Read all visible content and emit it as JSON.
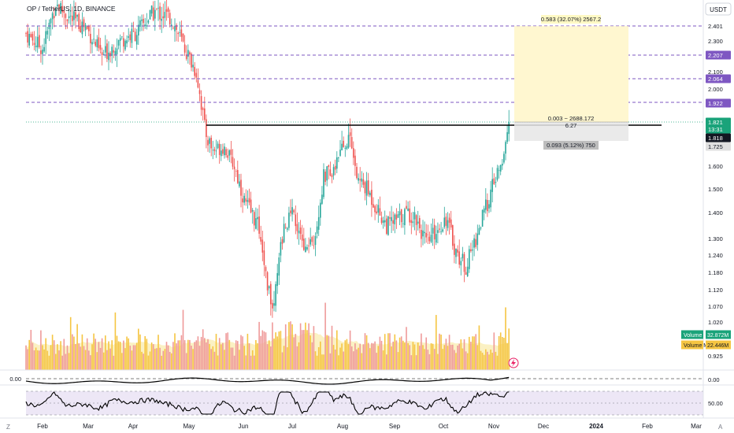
{
  "header": {
    "symbol_line": "OP / TetherUS, 1D, BINANCE",
    "currency": "USDT"
  },
  "colors": {
    "up": "#26a69a",
    "down": "#ef5350",
    "volume_up": "#f5c542",
    "volume_down": "#ef9a9a",
    "volume_ma": "#f7e07a",
    "level_line": "#7e57c2",
    "price_tag": "#1aa37a",
    "rsi_band": "#ede7f6",
    "target_zone": "#fff7d0",
    "stop_zone": "#e6e6e6"
  },
  "price_axis": {
    "ticks": [
      "2.401",
      "2.300",
      "2.207",
      "2.100",
      "2.064",
      "2.000",
      "1.922",
      "1.821",
      "1.725",
      "1.600",
      "1.500",
      "1.400",
      "1.300",
      "1.240",
      "1.180",
      "1.120",
      "1.070",
      "1.020",
      "0.925"
    ],
    "labels": [
      {
        "text": "2.401",
        "style": "plain"
      },
      {
        "text": "2.300",
        "style": "plain"
      },
      {
        "text": "2.207",
        "style": "level"
      },
      {
        "text": "2.100",
        "style": "plain"
      },
      {
        "text": "2.064",
        "style": "level"
      },
      {
        "text": "2.000",
        "style": "plain"
      },
      {
        "text": "1.922",
        "style": "level"
      },
      {
        "text": "1.821",
        "style": "price"
      },
      {
        "text": "13:31",
        "style": "price"
      },
      {
        "text": "1.818",
        "style": "dark"
      },
      {
        "text": "1.725",
        "style": "grey"
      },
      {
        "text": "1.600",
        "style": "plain"
      },
      {
        "text": "1.500",
        "style": "plain"
      },
      {
        "text": "1.400",
        "style": "plain"
      },
      {
        "text": "1.300",
        "style": "plain"
      },
      {
        "text": "1.240",
        "style": "plain"
      },
      {
        "text": "1.180",
        "style": "plain"
      },
      {
        "text": "1.120",
        "style": "plain"
      },
      {
        "text": "1.070",
        "style": "plain"
      },
      {
        "text": "1.020",
        "style": "plain"
      },
      {
        "text": "0.925",
        "style": "plain"
      }
    ]
  },
  "time_axis": [
    "Feb",
    "Mar",
    "Apr",
    "May",
    "Jun",
    "Jul",
    "Aug",
    "Sep",
    "Oct",
    "Nov",
    "Dec",
    "2024",
    "Feb",
    "Mar"
  ],
  "levels": [
    2.401,
    2.207,
    2.064,
    1.922
  ],
  "resistance": 1.818,
  "position": {
    "target_label": "0.583 (32.07%) 2567.2",
    "entry_label": "0.003 ~ 2688.172",
    "ratio_label": "6.27",
    "stop_label": "0.093 (5.12%) 750"
  },
  "volume_legend": [
    {
      "name": "Volume",
      "value": "32.872M"
    },
    {
      "name": "Volume MA",
      "value": "22.446M"
    }
  ],
  "oscillator": {
    "zero_left": "0.00",
    "zero_right": "0.00",
    "rsi_right": "50.00"
  },
  "footer": {
    "left": "Z",
    "right": "A"
  },
  "chart_data": {
    "type": "candlestick",
    "title": "OP / TetherUS, 1D, BINANCE",
    "x_start": "2023-01-24",
    "x_end": "2023-11-06",
    "ylim": [
      0.92,
      2.46
    ],
    "last_price": 1.821,
    "close_path": [
      [
        0,
        2.35
      ],
      [
        10,
        2.25
      ],
      [
        18,
        2.55
      ],
      [
        27,
        2.45
      ],
      [
        36,
        2.4
      ],
      [
        46,
        2.2
      ],
      [
        56,
        2.3
      ],
      [
        66,
        2.35
      ],
      [
        78,
        2.5
      ],
      [
        88,
        2.45
      ],
      [
        96,
        2.25
      ],
      [
        103,
        2.1
      ],
      [
        108,
        1.8
      ],
      [
        113,
        1.7
      ],
      [
        120,
        1.72
      ],
      [
        126,
        1.6
      ],
      [
        132,
        1.45
      ],
      [
        138,
        1.38
      ],
      [
        142,
        1.32
      ],
      [
        146,
        1.12
      ],
      [
        150,
        1.08
      ],
      [
        156,
        1.35
      ],
      [
        162,
        1.4
      ],
      [
        168,
        1.25
      ],
      [
        174,
        1.28
      ],
      [
        180,
        1.55
      ],
      [
        186,
        1.6
      ],
      [
        192,
        1.72
      ],
      [
        196,
        1.78
      ],
      [
        200,
        1.55
      ],
      [
        206,
        1.5
      ],
      [
        212,
        1.42
      ],
      [
        218,
        1.35
      ],
      [
        224,
        1.37
      ],
      [
        230,
        1.4
      ],
      [
        236,
        1.38
      ],
      [
        242,
        1.28
      ],
      [
        248,
        1.33
      ],
      [
        254,
        1.38
      ],
      [
        260,
        1.25
      ],
      [
        266,
        1.2
      ],
      [
        272,
        1.3
      ],
      [
        278,
        1.42
      ],
      [
        284,
        1.55
      ],
      [
        288,
        1.6
      ],
      [
        290,
        1.72
      ],
      [
        292,
        1.82
      ]
    ]
  }
}
